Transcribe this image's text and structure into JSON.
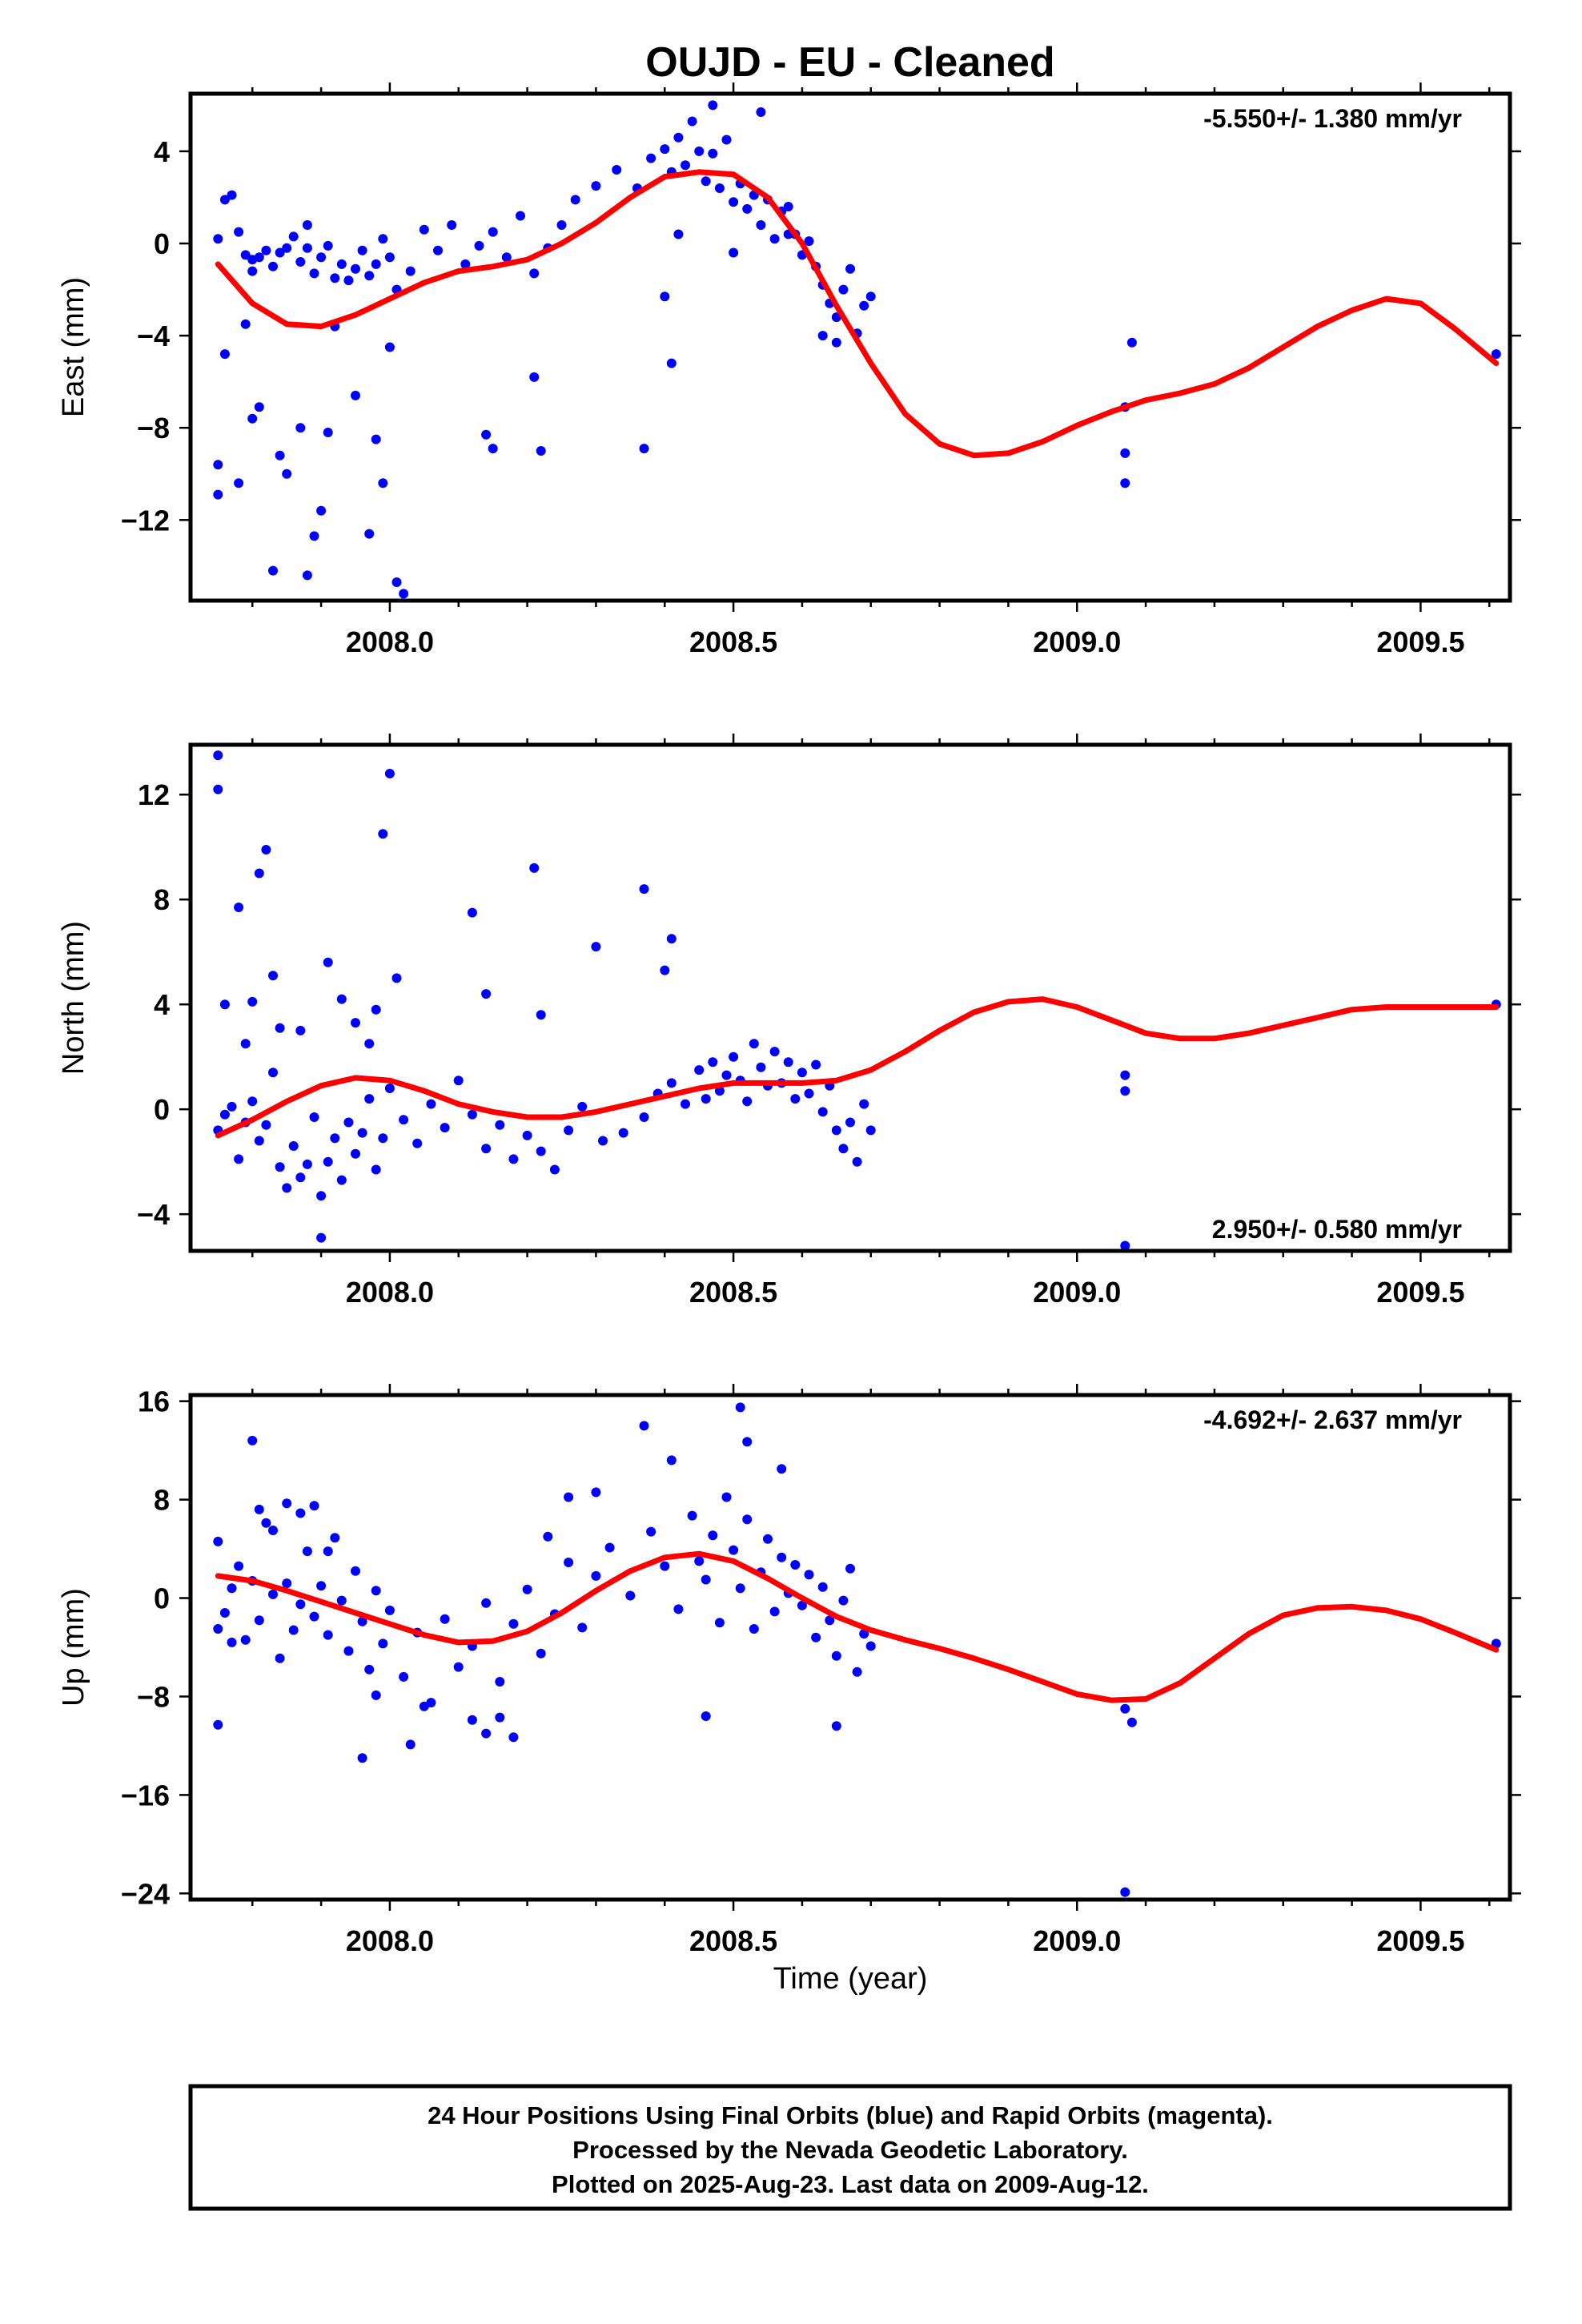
{
  "title": "OUJD  - EU - Cleaned",
  "xlabel": "Time (year)",
  "footer": {
    "line1": "24 Hour Positions Using Final Orbits (blue) and Rapid Orbits (magenta).",
    "line2": "Processed by the Nevada Geodetic Laboratory.",
    "line3": "Plotted on 2025-Aug-23. Last data on 2009-Aug-12."
  },
  "colors": {
    "points": "#0000ff",
    "fit": "#ff0000",
    "frame": "#000000"
  },
  "chart_data": [
    {
      "type": "scatter",
      "name": "east",
      "ylabel": "East (mm)",
      "rate": "-5.550+/- 1.380 mm/yr",
      "rate_position": "top-right",
      "xlim": [
        2007.71,
        2009.63
      ],
      "ylim": [
        -15.5,
        6.5
      ],
      "xticks": [
        2008.0,
        2008.5,
        2009.0,
        2009.5
      ],
      "xtick_labels": [
        "2008.0",
        "2008.5",
        "2009.0",
        "2009.5"
      ],
      "yticks": [
        4,
        0,
        -4,
        -8,
        -12
      ],
      "ytick_labels": [
        "4",
        "0",
        "−4",
        "−8",
        "−12"
      ],
      "fit_curve": {
        "x": [
          2007.75,
          2007.8,
          2007.85,
          2007.9,
          2007.95,
          2008.0,
          2008.05,
          2008.1,
          2008.15,
          2008.2,
          2008.25,
          2008.3,
          2008.35,
          2008.4,
          2008.45,
          2008.5,
          2008.55,
          2008.6,
          2008.65,
          2008.7,
          2008.75,
          2008.8,
          2008.85,
          2008.9,
          2008.95,
          2009.0,
          2009.05,
          2009.1,
          2009.15,
          2009.2,
          2009.25,
          2009.3,
          2009.35,
          2009.4,
          2009.45,
          2009.5,
          2009.55,
          2009.61
        ],
        "y": [
          -0.9,
          -2.6,
          -3.5,
          -3.6,
          -3.1,
          -2.4,
          -1.7,
          -1.2,
          -1.0,
          -0.7,
          0.0,
          0.9,
          2.0,
          2.9,
          3.1,
          3.0,
          2.0,
          0.0,
          -2.7,
          -5.2,
          -7.4,
          -8.7,
          -9.2,
          -9.1,
          -8.6,
          -7.9,
          -7.3,
          -6.8,
          -6.5,
          -6.1,
          -5.4,
          -4.5,
          -3.6,
          -2.9,
          -2.4,
          -2.6,
          -3.7,
          -5.2
        ]
      },
      "points": {
        "x": [
          2007.75,
          2007.75,
          2007.76,
          2007.77,
          2007.78,
          2007.79,
          2007.8,
          2007.8,
          2007.81,
          2007.82,
          2007.83,
          2007.84,
          2007.85,
          2007.86,
          2007.87,
          2007.88,
          2007.88,
          2007.89,
          2007.9,
          2007.91,
          2007.92,
          2007.93,
          2007.94,
          2007.95,
          2007.96,
          2007.97,
          2007.98,
          2007.99,
          2008.0,
          2008.01,
          2008.03,
          2008.05,
          2008.07,
          2008.09,
          2008.11,
          2008.13,
          2008.15,
          2008.17,
          2008.19,
          2008.21,
          2008.23,
          2008.25,
          2008.27,
          2008.3,
          2008.33,
          2008.36,
          2008.38,
          2008.4,
          2008.41,
          2008.42,
          2008.43,
          2008.44,
          2008.45,
          2008.46,
          2008.47,
          2008.48,
          2008.49,
          2008.5,
          2008.51,
          2008.52,
          2008.53,
          2008.54,
          2008.55,
          2008.56,
          2008.57,
          2008.58,
          2008.59,
          2008.6,
          2008.61,
          2008.62,
          2008.63,
          2008.64,
          2008.65,
          2008.66,
          2008.67,
          2008.68,
          2008.69,
          2008.7,
          2007.75,
          2007.76,
          2007.78,
          2007.79,
          2007.8,
          2007.81,
          2007.83,
          2007.84,
          2007.85,
          2007.87,
          2007.88,
          2007.89,
          2007.9,
          2007.91,
          2007.92,
          2007.95,
          2007.97,
          2007.98,
          2007.99,
          2008.0,
          2008.01,
          2008.02,
          2008.14,
          2008.15,
          2008.21,
          2008.22,
          2008.37,
          2008.4,
          2008.41,
          2008.42,
          2008.47,
          2008.5,
          2008.54,
          2008.58,
          2008.63,
          2008.65,
          2009.07,
          2009.07,
          2009.07,
          2009.08,
          2009.61
        ],
        "y": [
          0.2,
          -9.6,
          1.9,
          2.1,
          0.5,
          -0.5,
          -0.7,
          -1.2,
          -0.6,
          -0.3,
          -1.0,
          -0.4,
          -0.2,
          0.3,
          -0.8,
          0.8,
          -0.2,
          -1.3,
          -0.6,
          -0.1,
          -1.5,
          -0.9,
          -1.6,
          -1.1,
          -0.3,
          -1.4,
          -0.9,
          0.2,
          -0.6,
          -2.0,
          -1.2,
          0.6,
          -0.3,
          0.8,
          -0.9,
          -0.1,
          0.5,
          -0.6,
          1.2,
          -1.3,
          -0.2,
          0.8,
          1.9,
          2.5,
          3.2,
          2.4,
          3.7,
          4.1,
          3.1,
          4.6,
          3.4,
          5.3,
          4.0,
          2.7,
          3.9,
          2.4,
          4.5,
          1.8,
          2.6,
          1.5,
          2.1,
          0.8,
          1.9,
          0.2,
          1.4,
          1.6,
          0.4,
          -0.5,
          0.1,
          -1.0,
          -1.8,
          -2.6,
          -3.2,
          -2.0,
          -1.1,
          -3.9,
          -2.7,
          -2.3,
          -10.9,
          -4.8,
          -10.4,
          -3.5,
          -7.6,
          -7.1,
          -14.2,
          -9.2,
          -10.0,
          -8.0,
          -14.4,
          -12.7,
          -11.6,
          -8.2,
          -3.6,
          -6.6,
          -12.6,
          -8.5,
          -10.4,
          -4.5,
          -14.7,
          -15.2,
          -8.3,
          -8.9,
          -5.8,
          -9.0,
          -8.9,
          -2.3,
          -5.2,
          0.4,
          6.0,
          -0.4,
          5.7,
          0.4,
          -4.0,
          -4.3,
          -10.4,
          -7.1,
          -9.1,
          -4.3,
          -4.8
        ]
      }
    },
    {
      "type": "scatter",
      "name": "north",
      "ylabel": "North (mm)",
      "rate": "2.950+/- 0.580 mm/yr",
      "rate_position": "bottom-right",
      "xlim": [
        2007.71,
        2009.63
      ],
      "ylim": [
        -5.4,
        13.9
      ],
      "xticks": [
        2008.0,
        2008.5,
        2009.0,
        2009.5
      ],
      "xtick_labels": [
        "2008.0",
        "2008.5",
        "2009.0",
        "2009.5"
      ],
      "yticks": [
        12,
        8,
        4,
        0,
        -4
      ],
      "ytick_labels": [
        "12",
        "8",
        "4",
        "0",
        "−4"
      ],
      "fit_curve": {
        "x": [
          2007.75,
          2007.8,
          2007.85,
          2007.9,
          2007.95,
          2008.0,
          2008.05,
          2008.1,
          2008.15,
          2008.2,
          2008.25,
          2008.3,
          2008.35,
          2008.4,
          2008.45,
          2008.5,
          2008.55,
          2008.6,
          2008.65,
          2008.7,
          2008.75,
          2008.8,
          2008.85,
          2008.9,
          2008.95,
          2009.0,
          2009.05,
          2009.1,
          2009.15,
          2009.2,
          2009.25,
          2009.3,
          2009.35,
          2009.4,
          2009.45,
          2009.5,
          2009.55,
          2009.61
        ],
        "y": [
          -1.0,
          -0.4,
          0.3,
          0.9,
          1.2,
          1.1,
          0.7,
          0.2,
          -0.1,
          -0.3,
          -0.3,
          -0.1,
          0.2,
          0.5,
          0.8,
          1.0,
          1.0,
          1.0,
          1.1,
          1.5,
          2.2,
          3.0,
          3.7,
          4.1,
          4.2,
          3.9,
          3.4,
          2.9,
          2.7,
          2.7,
          2.9,
          3.2,
          3.5,
          3.8,
          3.9,
          3.9,
          3.9,
          3.9
        ]
      },
      "points": {
        "x": [
          2007.75,
          2007.76,
          2007.77,
          2007.78,
          2007.79,
          2007.8,
          2007.81,
          2007.82,
          2007.83,
          2007.84,
          2007.85,
          2007.86,
          2007.87,
          2007.88,
          2007.89,
          2007.9,
          2007.91,
          2007.92,
          2007.93,
          2007.94,
          2007.95,
          2007.96,
          2007.97,
          2007.98,
          2007.99,
          2008.0,
          2008.02,
          2008.04,
          2008.06,
          2008.08,
          2008.1,
          2008.12,
          2008.14,
          2008.16,
          2008.18,
          2008.2,
          2008.22,
          2008.24,
          2008.26,
          2008.28,
          2008.31,
          2008.34,
          2008.37,
          2008.39,
          2008.41,
          2008.43,
          2008.45,
          2008.46,
          2008.47,
          2008.48,
          2008.49,
          2008.5,
          2008.51,
          2008.52,
          2008.53,
          2008.54,
          2008.55,
          2008.56,
          2008.57,
          2008.58,
          2008.59,
          2008.6,
          2008.61,
          2008.62,
          2008.63,
          2008.64,
          2008.65,
          2008.66,
          2008.67,
          2008.68,
          2008.69,
          2008.7,
          2007.75,
          2007.75,
          2007.76,
          2007.78,
          2007.79,
          2007.8,
          2007.81,
          2007.82,
          2007.83,
          2007.84,
          2007.87,
          2007.9,
          2007.91,
          2007.93,
          2007.95,
          2007.97,
          2007.98,
          2007.99,
          2008.0,
          2008.01,
          2008.12,
          2008.14,
          2008.21,
          2008.22,
          2008.3,
          2008.37,
          2008.4,
          2008.41,
          2009.07,
          2009.07,
          2009.07,
          2009.61
        ],
        "y": [
          -0.8,
          -0.2,
          0.1,
          -1.9,
          -0.5,
          0.3,
          -1.2,
          -0.6,
          1.4,
          -2.2,
          -3.0,
          -1.4,
          -2.6,
          -2.1,
          -0.3,
          -3.3,
          -2.0,
          -1.1,
          -2.7,
          -0.5,
          -1.7,
          -0.9,
          0.4,
          -2.3,
          -1.1,
          0.8,
          -0.4,
          -1.3,
          0.2,
          -0.7,
          1.1,
          -0.2,
          -1.5,
          -0.6,
          -1.9,
          -1.0,
          -1.6,
          -2.3,
          -0.8,
          0.1,
          -1.2,
          -0.9,
          -0.3,
          0.6,
          1.0,
          0.2,
          1.5,
          0.4,
          1.8,
          0.7,
          1.3,
          2.0,
          1.1,
          0.3,
          2.5,
          1.6,
          0.9,
          2.2,
          1.0,
          1.8,
          0.4,
          1.4,
          0.6,
          1.7,
          -0.1,
          0.9,
          -0.8,
          -1.5,
          -0.5,
          -2.0,
          0.2,
          -0.8,
          13.5,
          12.2,
          4.0,
          7.7,
          2.5,
          4.1,
          9.0,
          9.9,
          5.1,
          3.1,
          3.0,
          -4.9,
          5.6,
          4.2,
          3.3,
          2.5,
          3.8,
          10.5,
          12.8,
          5.0,
          7.5,
          4.4,
          9.2,
          3.6,
          6.2,
          8.4,
          5.3,
          6.5,
          1.3,
          0.7,
          -5.2,
          4.0
        ]
      }
    },
    {
      "type": "scatter",
      "name": "up",
      "ylabel": "Up (mm)",
      "rate": "-4.692+/- 2.637 mm/yr",
      "rate_position": "top-right",
      "xlim": [
        2007.71,
        2009.63
      ],
      "ylim": [
        -24.5,
        16.5
      ],
      "xticks": [
        2008.0,
        2008.5,
        2009.0,
        2009.5
      ],
      "xtick_labels": [
        "2008.0",
        "2008.5",
        "2009.0",
        "2009.5"
      ],
      "yticks": [
        16,
        8,
        0,
        -8,
        -16,
        -24
      ],
      "ytick_labels": [
        "16",
        "8",
        "0",
        "−8",
        "−16",
        "−24"
      ],
      "fit_curve": {
        "x": [
          2007.75,
          2007.8,
          2007.85,
          2007.9,
          2007.95,
          2008.0,
          2008.05,
          2008.1,
          2008.15,
          2008.2,
          2008.25,
          2008.3,
          2008.35,
          2008.4,
          2008.45,
          2008.5,
          2008.55,
          2008.6,
          2008.65,
          2008.7,
          2008.75,
          2008.8,
          2008.85,
          2008.9,
          2008.95,
          2009.0,
          2009.05,
          2009.1,
          2009.15,
          2009.2,
          2009.25,
          2009.3,
          2009.35,
          2009.4,
          2009.45,
          2009.5,
          2009.55,
          2009.61
        ],
        "y": [
          1.8,
          1.4,
          0.6,
          -0.3,
          -1.2,
          -2.1,
          -3.0,
          -3.6,
          -3.5,
          -2.7,
          -1.2,
          0.6,
          2.2,
          3.3,
          3.6,
          3.0,
          1.6,
          0.0,
          -1.5,
          -2.6,
          -3.4,
          -4.1,
          -4.9,
          -5.8,
          -6.8,
          -7.8,
          -8.3,
          -8.2,
          -6.9,
          -4.9,
          -2.9,
          -1.4,
          -0.8,
          -0.7,
          -1.0,
          -1.7,
          -2.8,
          -4.2
        ]
      },
      "points": {
        "x": [
          2007.75,
          2007.76,
          2007.77,
          2007.78,
          2007.79,
          2007.8,
          2007.81,
          2007.82,
          2007.83,
          2007.84,
          2007.85,
          2007.86,
          2007.87,
          2007.88,
          2007.89,
          2007.9,
          2007.91,
          2007.92,
          2007.93,
          2007.94,
          2007.95,
          2007.96,
          2007.97,
          2007.98,
          2007.99,
          2008.0,
          2008.02,
          2008.04,
          2008.06,
          2008.08,
          2008.1,
          2008.12,
          2008.14,
          2008.16,
          2008.18,
          2008.2,
          2008.22,
          2008.24,
          2008.26,
          2008.28,
          2008.3,
          2008.32,
          2008.35,
          2008.38,
          2008.4,
          2008.42,
          2008.44,
          2008.45,
          2008.46,
          2008.47,
          2008.48,
          2008.49,
          2008.5,
          2008.51,
          2008.52,
          2008.53,
          2008.54,
          2008.55,
          2008.56,
          2008.57,
          2008.58,
          2008.59,
          2008.6,
          2008.61,
          2008.62,
          2008.63,
          2008.64,
          2008.65,
          2008.66,
          2008.67,
          2008.68,
          2008.69,
          2008.7,
          2007.75,
          2007.75,
          2007.77,
          2007.8,
          2007.81,
          2007.83,
          2007.85,
          2007.87,
          2007.89,
          2007.91,
          2007.96,
          2007.98,
          2008.03,
          2008.05,
          2008.12,
          2008.14,
          2008.16,
          2008.18,
          2008.23,
          2008.26,
          2008.3,
          2008.37,
          2008.41,
          2008.46,
          2008.51,
          2008.52,
          2008.57,
          2008.65,
          2009.07,
          2009.07,
          2009.08,
          2009.61
        ],
        "y": [
          4.6,
          -1.2,
          0.8,
          2.6,
          -3.4,
          1.4,
          -1.8,
          6.1,
          0.3,
          -4.9,
          1.2,
          -2.6,
          -0.5,
          3.8,
          -1.5,
          1.0,
          -3.0,
          4.9,
          -0.2,
          -4.3,
          2.2,
          -1.9,
          -5.8,
          0.6,
          -3.7,
          -1.0,
          -6.4,
          -2.8,
          -8.5,
          -1.7,
          -5.6,
          -3.9,
          -0.4,
          -6.8,
          -2.1,
          0.7,
          -4.5,
          -1.3,
          2.9,
          -2.4,
          1.8,
          4.1,
          0.2,
          5.4,
          2.6,
          -0.9,
          6.7,
          3.0,
          1.5,
          5.1,
          -2.0,
          8.2,
          3.9,
          0.8,
          6.4,
          -2.5,
          2.1,
          4.8,
          -1.1,
          3.3,
          0.4,
          2.7,
          -0.6,
          1.9,
          -3.2,
          0.9,
          -1.8,
          -4.7,
          -0.2,
          2.4,
          -6.0,
          -2.9,
          -3.9,
          -10.3,
          -2.5,
          -3.6,
          12.8,
          7.2,
          5.5,
          7.7,
          6.9,
          7.5,
          3.8,
          -13.0,
          -7.9,
          -11.9,
          -8.8,
          -9.9,
          -11.0,
          -9.7,
          -11.3,
          5.0,
          8.2,
          8.6,
          14.0,
          11.2,
          -9.6,
          15.5,
          12.7,
          10.5,
          -10.4,
          -23.9,
          -9.0,
          -10.1,
          -3.7
        ]
      }
    }
  ]
}
